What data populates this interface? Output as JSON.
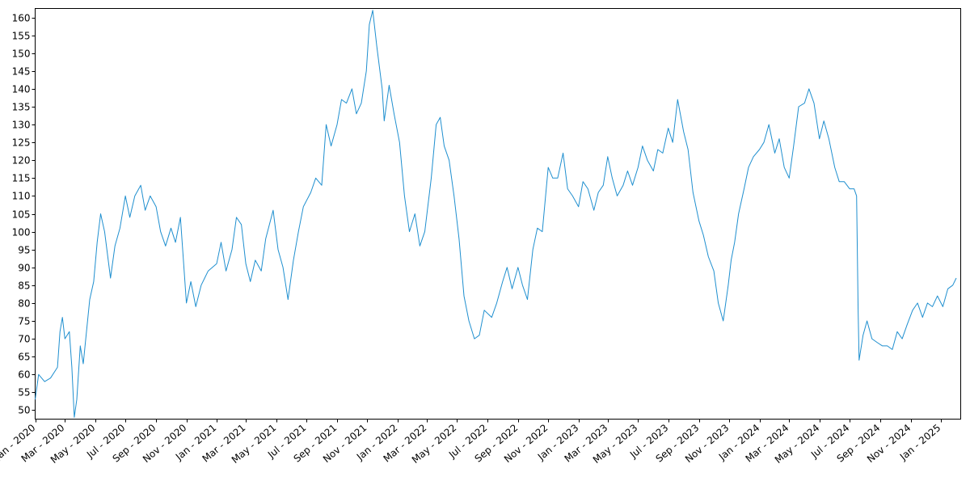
{
  "chart_data": {
    "type": "line",
    "title": "",
    "xlabel": "",
    "ylabel": "",
    "grid": false,
    "legend": "none",
    "line_color": "#1f8fcf",
    "xlim": [
      "2020-01-01",
      "2025-02-10"
    ],
    "ylim": [
      47.5,
      162.5
    ],
    "y_ticks": [
      50,
      55,
      60,
      65,
      70,
      75,
      80,
      85,
      90,
      95,
      100,
      105,
      110,
      115,
      120,
      125,
      130,
      135,
      140,
      145,
      150,
      155,
      160
    ],
    "x_ticks": [
      {
        "date": "2020-01-01",
        "label": "Jan - 2020"
      },
      {
        "date": "2020-03-01",
        "label": "Mar - 2020"
      },
      {
        "date": "2020-05-01",
        "label": "May - 2020"
      },
      {
        "date": "2020-07-01",
        "label": "Jul - 2020"
      },
      {
        "date": "2020-09-01",
        "label": "Sep - 2020"
      },
      {
        "date": "2020-11-01",
        "label": "Nov - 2020"
      },
      {
        "date": "2021-01-01",
        "label": "Jan - 2021"
      },
      {
        "date": "2021-03-01",
        "label": "Mar - 2021"
      },
      {
        "date": "2021-05-01",
        "label": "May - 2021"
      },
      {
        "date": "2021-07-01",
        "label": "Jul - 2021"
      },
      {
        "date": "2021-09-01",
        "label": "Sep - 2021"
      },
      {
        "date": "2021-11-01",
        "label": "Nov - 2021"
      },
      {
        "date": "2022-01-01",
        "label": "Jan - 2022"
      },
      {
        "date": "2022-03-01",
        "label": "Mar - 2022"
      },
      {
        "date": "2022-05-01",
        "label": "May - 2022"
      },
      {
        "date": "2022-07-01",
        "label": "Jul - 2022"
      },
      {
        "date": "2022-09-01",
        "label": "Sep - 2022"
      },
      {
        "date": "2022-11-01",
        "label": "Nov - 2022"
      },
      {
        "date": "2023-01-01",
        "label": "Jan - 2023"
      },
      {
        "date": "2023-03-01",
        "label": "Mar - 2023"
      },
      {
        "date": "2023-05-01",
        "label": "May - 2023"
      },
      {
        "date": "2023-07-01",
        "label": "Jul - 2023"
      },
      {
        "date": "2023-09-01",
        "label": "Sep - 2023"
      },
      {
        "date": "2023-11-01",
        "label": "Nov - 2023"
      },
      {
        "date": "2024-01-01",
        "label": "Jan - 2024"
      },
      {
        "date": "2024-03-01",
        "label": "Mar - 2024"
      },
      {
        "date": "2024-05-01",
        "label": "May - 2024"
      },
      {
        "date": "2024-07-01",
        "label": "Jul - 2024"
      },
      {
        "date": "2024-09-01",
        "label": "Sep - 2024"
      },
      {
        "date": "2024-11-01",
        "label": "Nov - 2024"
      },
      {
        "date": "2025-01-01",
        "label": "Jan - 2025"
      }
    ],
    "series": [
      {
        "points": [
          [
            "2020-01-01",
            53
          ],
          [
            "2020-01-08",
            60
          ],
          [
            "2020-01-20",
            58
          ],
          [
            "2020-02-01",
            59
          ],
          [
            "2020-02-15",
            62
          ],
          [
            "2020-02-20",
            72
          ],
          [
            "2020-02-25",
            76
          ],
          [
            "2020-03-01",
            70
          ],
          [
            "2020-03-10",
            72
          ],
          [
            "2020-03-15",
            62
          ],
          [
            "2020-03-20",
            48
          ],
          [
            "2020-03-25",
            53
          ],
          [
            "2020-04-01",
            68
          ],
          [
            "2020-04-07",
            63
          ],
          [
            "2020-04-12",
            70
          ],
          [
            "2020-04-20",
            81
          ],
          [
            "2020-04-28",
            86
          ],
          [
            "2020-05-05",
            97
          ],
          [
            "2020-05-12",
            105
          ],
          [
            "2020-05-20",
            100
          ],
          [
            "2020-06-01",
            87
          ],
          [
            "2020-06-10",
            96
          ],
          [
            "2020-06-20",
            101
          ],
          [
            "2020-07-01",
            110
          ],
          [
            "2020-07-10",
            104
          ],
          [
            "2020-07-20",
            110
          ],
          [
            "2020-08-01",
            113
          ],
          [
            "2020-08-10",
            106
          ],
          [
            "2020-08-20",
            110
          ],
          [
            "2020-09-01",
            107
          ],
          [
            "2020-09-10",
            100
          ],
          [
            "2020-09-20",
            96
          ],
          [
            "2020-10-01",
            101
          ],
          [
            "2020-10-10",
            97
          ],
          [
            "2020-10-20",
            104
          ],
          [
            "2020-11-01",
            80
          ],
          [
            "2020-11-10",
            86
          ],
          [
            "2020-11-20",
            79
          ],
          [
            "2020-12-01",
            85
          ],
          [
            "2020-12-15",
            89
          ],
          [
            "2021-01-01",
            91
          ],
          [
            "2021-01-10",
            97
          ],
          [
            "2021-01-20",
            89
          ],
          [
            "2021-02-01",
            95
          ],
          [
            "2021-02-10",
            104
          ],
          [
            "2021-02-20",
            102
          ],
          [
            "2021-03-01",
            91
          ],
          [
            "2021-03-10",
            86
          ],
          [
            "2021-03-20",
            92
          ],
          [
            "2021-04-01",
            89
          ],
          [
            "2021-04-10",
            98
          ],
          [
            "2021-04-25",
            106
          ],
          [
            "2021-05-05",
            95
          ],
          [
            "2021-05-15",
            90
          ],
          [
            "2021-05-25",
            81
          ],
          [
            "2021-06-05",
            92
          ],
          [
            "2021-06-15",
            100
          ],
          [
            "2021-06-25",
            107
          ],
          [
            "2021-07-10",
            111
          ],
          [
            "2021-07-20",
            115
          ],
          [
            "2021-08-01",
            113
          ],
          [
            "2021-08-10",
            130
          ],
          [
            "2021-08-20",
            124
          ],
          [
            "2021-09-01",
            130
          ],
          [
            "2021-09-10",
            137
          ],
          [
            "2021-09-20",
            136
          ],
          [
            "2021-10-01",
            140
          ],
          [
            "2021-10-10",
            133
          ],
          [
            "2021-10-20",
            136
          ],
          [
            "2021-10-30",
            145
          ],
          [
            "2021-11-05",
            158
          ],
          [
            "2021-11-12",
            162
          ],
          [
            "2021-11-20",
            152
          ],
          [
            "2021-12-01",
            140
          ],
          [
            "2021-12-05",
            131
          ],
          [
            "2021-12-15",
            141
          ],
          [
            "2021-12-25",
            133
          ],
          [
            "2022-01-05",
            125
          ],
          [
            "2022-01-15",
            110
          ],
          [
            "2022-01-25",
            100
          ],
          [
            "2022-02-05",
            105
          ],
          [
            "2022-02-15",
            96
          ],
          [
            "2022-02-25",
            100
          ],
          [
            "2022-03-10",
            115
          ],
          [
            "2022-03-20",
            130
          ],
          [
            "2022-03-28",
            132
          ],
          [
            "2022-04-05",
            124
          ],
          [
            "2022-04-15",
            120
          ],
          [
            "2022-04-25",
            110
          ],
          [
            "2022-05-05",
            98
          ],
          [
            "2022-05-15",
            82
          ],
          [
            "2022-05-25",
            75
          ],
          [
            "2022-06-05",
            70
          ],
          [
            "2022-06-15",
            71
          ],
          [
            "2022-06-25",
            78
          ],
          [
            "2022-07-10",
            76
          ],
          [
            "2022-07-20",
            80
          ],
          [
            "2022-08-01",
            86
          ],
          [
            "2022-08-10",
            90
          ],
          [
            "2022-08-20",
            84
          ],
          [
            "2022-09-01",
            90
          ],
          [
            "2022-09-10",
            85
          ],
          [
            "2022-09-20",
            81
          ],
          [
            "2022-10-01",
            95
          ],
          [
            "2022-10-10",
            101
          ],
          [
            "2022-10-20",
            100
          ],
          [
            "2022-11-01",
            118
          ],
          [
            "2022-11-10",
            115
          ],
          [
            "2022-11-20",
            115
          ],
          [
            "2022-12-01",
            122
          ],
          [
            "2022-12-10",
            112
          ],
          [
            "2022-12-20",
            110
          ],
          [
            "2023-01-01",
            107
          ],
          [
            "2023-01-10",
            114
          ],
          [
            "2023-01-20",
            112
          ],
          [
            "2023-02-01",
            106
          ],
          [
            "2023-02-10",
            111
          ],
          [
            "2023-02-20",
            113
          ],
          [
            "2023-03-01",
            121
          ],
          [
            "2023-03-10",
            115
          ],
          [
            "2023-03-20",
            110
          ],
          [
            "2023-04-01",
            113
          ],
          [
            "2023-04-10",
            117
          ],
          [
            "2023-04-20",
            113
          ],
          [
            "2023-05-01",
            118
          ],
          [
            "2023-05-10",
            124
          ],
          [
            "2023-05-20",
            120
          ],
          [
            "2023-06-01",
            117
          ],
          [
            "2023-06-10",
            123
          ],
          [
            "2023-06-20",
            122
          ],
          [
            "2023-07-01",
            129
          ],
          [
            "2023-07-10",
            125
          ],
          [
            "2023-07-20",
            137
          ],
          [
            "2023-08-01",
            128
          ],
          [
            "2023-08-10",
            123
          ],
          [
            "2023-08-20",
            111
          ],
          [
            "2023-09-01",
            103
          ],
          [
            "2023-09-10",
            99
          ],
          [
            "2023-09-20",
            93
          ],
          [
            "2023-10-01",
            89
          ],
          [
            "2023-10-10",
            80
          ],
          [
            "2023-10-20",
            75
          ],
          [
            "2023-10-30",
            85
          ],
          [
            "2023-11-05",
            92
          ],
          [
            "2023-11-12",
            97
          ],
          [
            "2023-11-20",
            105
          ],
          [
            "2023-12-01",
            112
          ],
          [
            "2023-12-10",
            118
          ],
          [
            "2023-12-20",
            121
          ],
          [
            "2024-01-01",
            123
          ],
          [
            "2024-01-10",
            125
          ],
          [
            "2024-01-20",
            130
          ],
          [
            "2024-02-01",
            122
          ],
          [
            "2024-02-10",
            126
          ],
          [
            "2024-02-20",
            118
          ],
          [
            "2024-03-01",
            115
          ],
          [
            "2024-03-10",
            124
          ],
          [
            "2024-03-20",
            135
          ],
          [
            "2024-04-01",
            136
          ],
          [
            "2024-04-10",
            140
          ],
          [
            "2024-04-20",
            136
          ],
          [
            "2024-05-01",
            126
          ],
          [
            "2024-05-10",
            131
          ],
          [
            "2024-05-20",
            126
          ],
          [
            "2024-06-01",
            118
          ],
          [
            "2024-06-10",
            114
          ],
          [
            "2024-06-20",
            114
          ],
          [
            "2024-07-01",
            112
          ],
          [
            "2024-07-10",
            112
          ],
          [
            "2024-07-15",
            110
          ],
          [
            "2024-07-18",
            78
          ],
          [
            "2024-07-20",
            64
          ],
          [
            "2024-07-28",
            71
          ],
          [
            "2024-08-05",
            75
          ],
          [
            "2024-08-15",
            70
          ],
          [
            "2024-08-25",
            69
          ],
          [
            "2024-09-05",
            68
          ],
          [
            "2024-09-15",
            68
          ],
          [
            "2024-09-25",
            67
          ],
          [
            "2024-10-05",
            72
          ],
          [
            "2024-10-15",
            70
          ],
          [
            "2024-10-25",
            74
          ],
          [
            "2024-11-05",
            78
          ],
          [
            "2024-11-15",
            80
          ],
          [
            "2024-11-25",
            76
          ],
          [
            "2024-12-05",
            80
          ],
          [
            "2024-12-15",
            79
          ],
          [
            "2024-12-25",
            82
          ],
          [
            "2025-01-05",
            79
          ],
          [
            "2025-01-15",
            84
          ],
          [
            "2025-01-25",
            85
          ],
          [
            "2025-02-01",
            87
          ]
        ]
      }
    ]
  }
}
